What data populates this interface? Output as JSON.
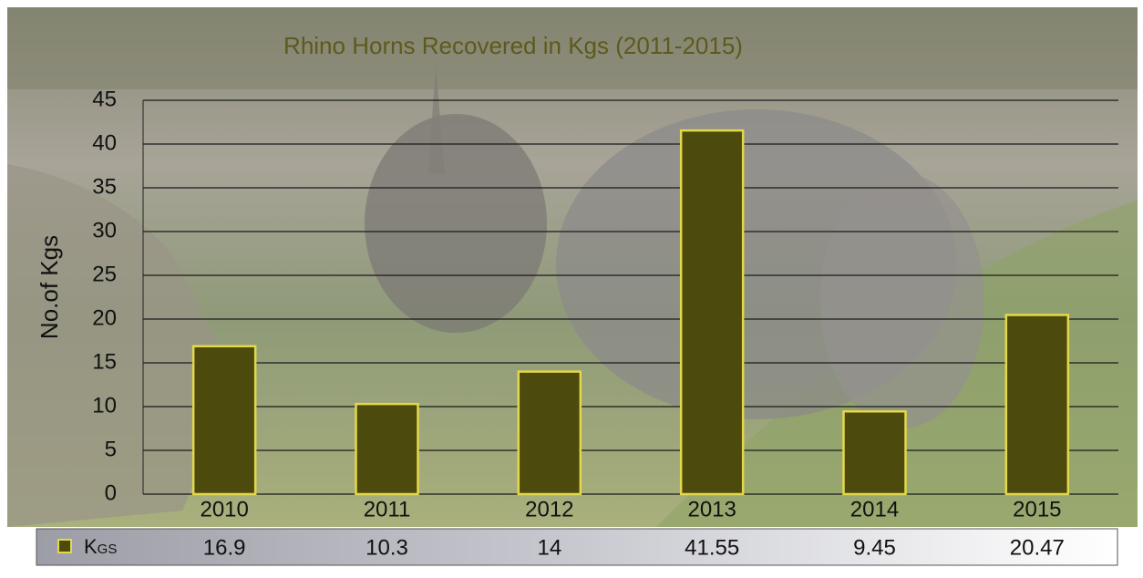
{
  "chart_data": {
    "type": "bar",
    "title": "Rhino Horns Recovered in Kgs (2011-2015)",
    "y_label": "No.of Kgs",
    "categories": [
      "2010",
      "2011",
      "2012",
      "2013",
      "2014",
      "2015"
    ],
    "series": [
      {
        "name": "Kgs",
        "color": "#4d4a0e",
        "values": [
          16.9,
          10.3,
          14,
          41.55,
          9.45,
          20.47
        ]
      }
    ],
    "ylim": [
      0,
      45
    ],
    "yticks": [
      0,
      5,
      10,
      15,
      20,
      25,
      30,
      35,
      40,
      45
    ],
    "grid": true
  }
}
